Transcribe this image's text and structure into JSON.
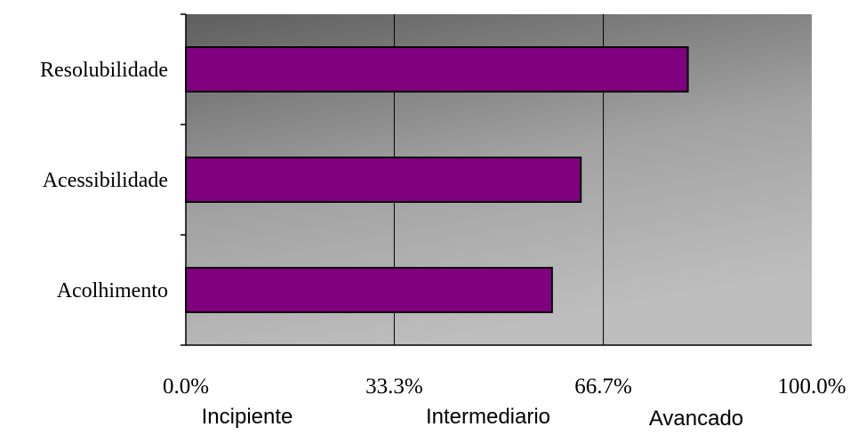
{
  "chart_data": {
    "type": "bar",
    "orientation": "horizontal",
    "categories": [
      "Resolubilidade",
      "Acessibilidade",
      "Acolhimento"
    ],
    "values": [
      80.2,
      63.1,
      58.5
    ],
    "xlim": [
      0,
      100
    ],
    "x_ticks": [
      0,
      33.3,
      66.7,
      100
    ],
    "x_tick_labels": [
      "0.0%",
      "33.3%",
      "66.7%",
      "100.0%"
    ],
    "level_labels": [
      "Incipiente",
      "Intermediario",
      "Avancado"
    ],
    "grid": "vertical",
    "bar_color": "#800080",
    "plot_background": "gradient-dark-to-light-gray",
    "legend": "none"
  }
}
